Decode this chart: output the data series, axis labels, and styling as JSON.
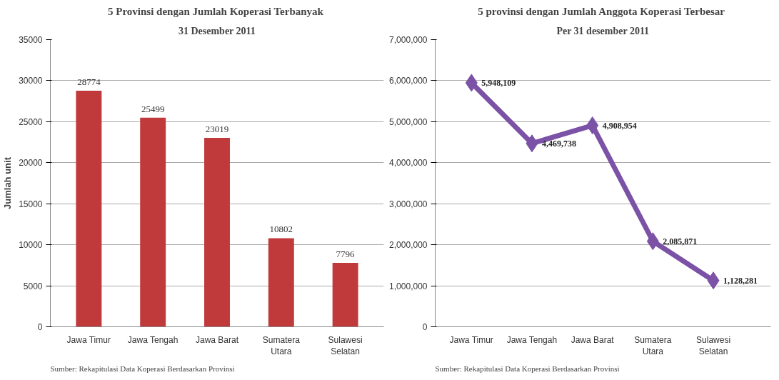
{
  "chart_data": [
    {
      "type": "bar",
      "title": "5 Provinsi dengan Jumlah Koperasi  Terbanyak",
      "subtitle": "31 Desember 2011",
      "ylabel": "Jumlah unit",
      "categories": [
        "Jawa Timur",
        "Jawa Tengah",
        "Jawa Barat",
        "Sumatera\nUtara",
        "Sulawesi\nSelatan"
      ],
      "values": [
        28774,
        25499,
        23019,
        10802,
        7796
      ],
      "color": "#c0393b",
      "ylim": [
        0,
        35000
      ],
      "yticks": [
        0,
        5000,
        10000,
        15000,
        20000,
        25000,
        30000,
        35000
      ],
      "grid": "y",
      "data_labels": true,
      "annotations": [
        "Sumber: Rekapitulasi Data Koperasi Berdasarkan Provinsi"
      ]
    },
    {
      "type": "line",
      "title": "5 provinsi dengan Jumlah Anggota Koperasi  Terbesar",
      "subtitle": "Per 31 desember 2011",
      "categories": [
        "Jawa Timur",
        "Jawa Tengah",
        "Jawa Barat",
        "Sumatera\nUtara",
        "Sulawesi\nSelatan"
      ],
      "values": [
        5948109,
        4469738,
        4908954,
        2085871,
        1128281
      ],
      "color": "#7b52a6",
      "marker": "diamond",
      "value_labels": [
        "5,948,109",
        "4,469,738",
        "4,908,954",
        "2,085,871",
        "1,128,281"
      ],
      "ylim": [
        0,
        7000000
      ],
      "yticks": [
        0,
        {
          "value": 1000000,
          "label": "1,000,000"
        },
        {
          "value": 2000000,
          "label": "2,000,000"
        },
        {
          "value": 3000000,
          "label": "3,000,000"
        },
        {
          "value": 4000000,
          "label": "4,000,000"
        },
        {
          "value": 5000000,
          "label": "5,000,000"
        },
        {
          "value": 6000000,
          "label": "6,000,000"
        },
        {
          "value": 7000000,
          "label": "7,000,000"
        }
      ],
      "grid": "y",
      "annotations": [
        "Sumber: Rekapitulasi Data Koperasi Berdasarkan Provinsi"
      ]
    }
  ]
}
